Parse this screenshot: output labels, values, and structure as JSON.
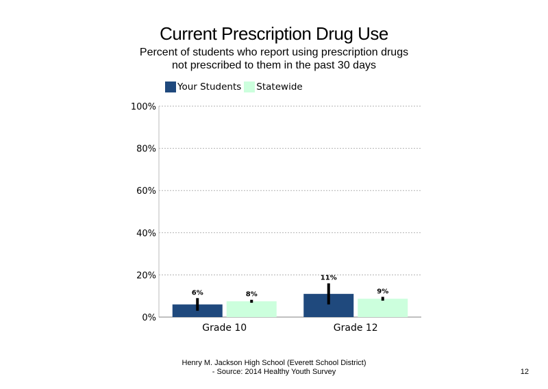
{
  "title": "Current Prescription Drug Use",
  "subtitle": "Percent of students  who report using prescription drugs not prescribed to them in the past 30 days",
  "footer": {
    "line1": "Henry M. Jackson High School (Everett School District)",
    "line2": "- Source: 2014 Healthy Youth Survey"
  },
  "page_number": "12",
  "colors": {
    "your_students": "#1f497d",
    "statewide": "#ccffdd",
    "error_bar": "#000000"
  },
  "chart_data": {
    "type": "bar",
    "title": "Current Prescription Drug Use",
    "categories": [
      "Grade 10",
      "Grade 12"
    ],
    "series": [
      {
        "name": "Your Students",
        "values": [
          6,
          11
        ],
        "labels": [
          "6%",
          "11%"
        ],
        "error_low": [
          3,
          6
        ],
        "error_high": [
          9,
          16
        ]
      },
      {
        "name": "Statewide",
        "values": [
          7.5,
          8.7
        ],
        "labels": [
          "8%",
          "9%"
        ],
        "error_low": [
          6.8,
          7.8
        ],
        "error_high": [
          8.2,
          9.6
        ]
      }
    ],
    "y_ticks": [
      "0%",
      "20%",
      "40%",
      "60%",
      "80%",
      "100%"
    ],
    "ylim": [
      0,
      100
    ],
    "grid": true,
    "legend": "top-left"
  }
}
